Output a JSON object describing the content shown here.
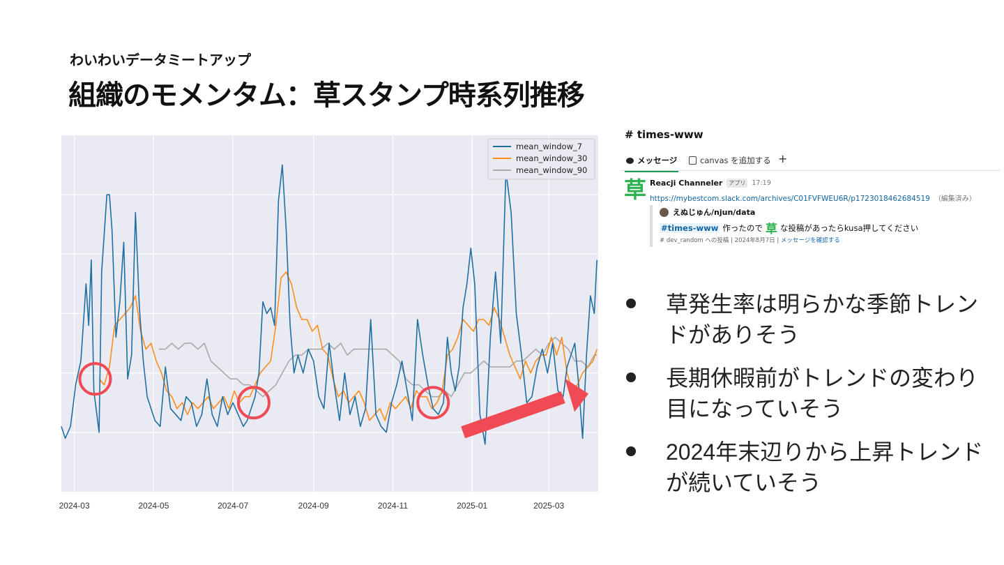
{
  "slide": {
    "subtitle": "わいわいデータミートアップ",
    "title": "組織のモメンタム：草スタンプ時系列推移"
  },
  "slack": {
    "channel": "# times-www",
    "tabs": [
      {
        "label": "メッセージ",
        "icon": "message-bubble-icon"
      },
      {
        "label": "canvas を追加する",
        "icon": "canvas-icon"
      },
      {
        "label": "+",
        "icon": "plus-icon"
      }
    ],
    "message": {
      "app_icon": "草",
      "author": "Reacji Channeler",
      "badge": "アプリ",
      "time": "17:19",
      "link": "https://mybestcom.slack.com/archives/C01FVFWEU6R/p1723018462684519",
      "edited": "（編集済み）",
      "quote": {
        "user": "えぬじゅん/njun/data",
        "mention": "#times-www",
        "text_before": "作ったので",
        "grass": "草",
        "text_after": "な投稿があったらkusa押してください",
        "meta": "# dev_random への投稿 | 2024年8月7日 | ",
        "confirm": "メッセージを確認する"
      }
    }
  },
  "bullets": [
    "草発生率は明らかな季節トレンドがありそう",
    "長期休暇前がトレンドの変わり目になっていそう",
    "2024年末辺りから上昇トレンドが続いていそう"
  ],
  "colors": {
    "series_7": "#1f6fa3",
    "series_30": "#ff8c1a",
    "series_90": "#aaaaaa",
    "plot_bg": "#eaeaf2",
    "highlight": "#f04b55"
  },
  "chart_data": {
    "type": "line",
    "xlabel": "",
    "ylabel": "",
    "x_ticks": [
      "2024-03",
      "2024-05",
      "2024-07",
      "2024-09",
      "2024-11",
      "2025-01",
      "2025-03"
    ],
    "x_range": [
      "2024-02-20",
      "2025-04-08"
    ],
    "y_range": [
      0,
      6
    ],
    "y_tick_labels": "none",
    "legend": "top-right",
    "grid": true,
    "series": [
      {
        "name": "mean_window_7",
        "x": [
          "2024-02-20",
          "2024-02-23",
          "2024-02-27",
          "2024-03-02",
          "2024-03-06",
          "2024-03-10",
          "2024-03-12",
          "2024-03-14",
          "2024-03-16",
          "2024-03-20",
          "2024-03-22",
          "2024-03-26",
          "2024-03-28",
          "2024-03-30",
          "2024-04-02",
          "2024-04-05",
          "2024-04-08",
          "2024-04-11",
          "2024-04-14",
          "2024-04-17",
          "2024-04-20",
          "2024-04-23",
          "2024-04-26",
          "2024-04-29",
          "2024-05-02",
          "2024-05-06",
          "2024-05-10",
          "2024-05-14",
          "2024-05-18",
          "2024-05-22",
          "2024-05-26",
          "2024-05-30",
          "2024-06-03",
          "2024-06-07",
          "2024-06-11",
          "2024-06-15",
          "2024-06-19",
          "2024-06-23",
          "2024-06-27",
          "2024-07-01",
          "2024-07-05",
          "2024-07-09",
          "2024-07-12",
          "2024-07-15",
          "2024-07-18",
          "2024-07-21",
          "2024-07-24",
          "2024-07-27",
          "2024-07-30",
          "2024-08-02",
          "2024-08-05",
          "2024-08-08",
          "2024-08-11",
          "2024-08-14",
          "2024-08-17",
          "2024-08-20",
          "2024-08-24",
          "2024-08-28",
          "2024-09-01",
          "2024-09-05",
          "2024-09-09",
          "2024-09-13",
          "2024-09-17",
          "2024-09-21",
          "2024-09-25",
          "2024-09-29",
          "2024-10-03",
          "2024-10-07",
          "2024-10-11",
          "2024-10-15",
          "2024-10-19",
          "2024-10-23",
          "2024-10-27",
          "2024-10-31",
          "2024-11-04",
          "2024-11-08",
          "2024-11-12",
          "2024-11-16",
          "2024-11-20",
          "2024-11-24",
          "2024-11-28",
          "2024-12-02",
          "2024-12-06",
          "2024-12-10",
          "2024-12-13",
          "2024-12-16",
          "2024-12-19",
          "2024-12-22",
          "2024-12-25",
          "2024-12-28",
          "2024-12-31",
          "2025-01-03",
          "2025-01-07",
          "2025-01-11",
          "2025-01-15",
          "2025-01-19",
          "2025-01-23",
          "2025-01-27",
          "2025-01-31",
          "2025-02-04",
          "2025-02-08",
          "2025-02-12",
          "2025-02-16",
          "2025-02-20",
          "2025-02-24",
          "2025-02-28",
          "2025-03-04",
          "2025-03-08",
          "2025-03-12",
          "2025-03-15",
          "2025-03-18",
          "2025-03-21",
          "2025-03-24",
          "2025-03-27",
          "2025-03-30",
          "2025-04-02",
          "2025-04-05",
          "2025-04-07"
        ],
        "values": [
          1.1,
          0.9,
          1.1,
          1.8,
          2.2,
          3.5,
          2.8,
          3.9,
          1.7,
          1.0,
          3.7,
          5.0,
          5.0,
          4.4,
          2.6,
          3.2,
          4.2,
          1.9,
          2.3,
          4.7,
          3.1,
          2.2,
          1.6,
          1.4,
          1.2,
          1.1,
          2.1,
          1.4,
          1.3,
          1.2,
          1.6,
          1.5,
          1.1,
          1.3,
          1.9,
          1.3,
          1.1,
          1.6,
          1.3,
          1.5,
          1.3,
          1.1,
          1.2,
          1.4,
          1.6,
          2.0,
          3.2,
          3.0,
          3.1,
          2.8,
          4.9,
          5.5,
          4.4,
          2.8,
          2.0,
          2.3,
          2.0,
          2.4,
          2.2,
          1.6,
          1.4,
          2.5,
          1.8,
          1.2,
          2.0,
          1.3,
          1.6,
          1.1,
          1.4,
          2.9,
          1.3,
          1.1,
          1.0,
          1.5,
          1.8,
          2.2,
          1.7,
          1.2,
          2.9,
          2.3,
          1.8,
          1.4,
          1.3,
          1.5,
          2.6,
          2.0,
          1.7,
          2.1,
          3.1,
          3.5,
          4.1,
          3.5,
          1.3,
          0.8,
          2.6,
          3.7,
          2.5,
          5.4,
          4.7,
          3.0,
          2.3,
          1.5,
          1.6,
          2.1,
          2.4,
          2.0,
          2.5,
          1.7,
          1.6,
          2.1,
          2.3,
          2.5,
          1.8,
          0.9,
          2.3,
          3.3,
          3.0,
          3.9
        ]
      },
      {
        "name": "mean_window_30",
        "x": [
          "2024-03-20",
          "2024-03-24",
          "2024-03-28",
          "2024-04-01",
          "2024-04-05",
          "2024-04-09",
          "2024-04-13",
          "2024-04-17",
          "2024-04-21",
          "2024-04-25",
          "2024-04-29",
          "2024-05-03",
          "2024-05-07",
          "2024-05-11",
          "2024-05-15",
          "2024-05-19",
          "2024-05-23",
          "2024-05-27",
          "2024-05-31",
          "2024-06-04",
          "2024-06-08",
          "2024-06-12",
          "2024-06-16",
          "2024-06-20",
          "2024-06-24",
          "2024-06-28",
          "2024-07-02",
          "2024-07-06",
          "2024-07-10",
          "2024-07-14",
          "2024-07-18",
          "2024-07-22",
          "2024-07-26",
          "2024-07-30",
          "2024-08-03",
          "2024-08-07",
          "2024-08-11",
          "2024-08-15",
          "2024-08-19",
          "2024-08-23",
          "2024-08-27",
          "2024-08-31",
          "2024-09-04",
          "2024-09-08",
          "2024-09-12",
          "2024-09-16",
          "2024-09-20",
          "2024-09-24",
          "2024-09-28",
          "2024-10-02",
          "2024-10-06",
          "2024-10-10",
          "2024-10-14",
          "2024-10-18",
          "2024-10-22",
          "2024-10-26",
          "2024-10-30",
          "2024-11-03",
          "2024-11-07",
          "2024-11-11",
          "2024-11-15",
          "2024-11-19",
          "2024-11-23",
          "2024-11-27",
          "2024-12-01",
          "2024-12-05",
          "2024-12-09",
          "2024-12-13",
          "2024-12-17",
          "2024-12-21",
          "2024-12-25",
          "2024-12-29",
          "2025-01-02",
          "2025-01-06",
          "2025-01-10",
          "2025-01-14",
          "2025-01-18",
          "2025-01-22",
          "2025-01-26",
          "2025-01-30",
          "2025-02-03",
          "2025-02-07",
          "2025-02-11",
          "2025-02-15",
          "2025-02-19",
          "2025-02-23",
          "2025-02-27",
          "2025-03-03",
          "2025-03-07",
          "2025-03-11",
          "2025-03-15",
          "2025-03-19",
          "2025-03-23",
          "2025-03-27",
          "2025-03-31",
          "2025-04-04",
          "2025-04-07"
        ],
        "values": [
          1.9,
          1.8,
          2.1,
          2.8,
          2.9,
          3.0,
          3.1,
          3.3,
          2.7,
          2.4,
          2.5,
          2.2,
          2.0,
          1.7,
          1.6,
          1.4,
          1.5,
          1.3,
          1.5,
          1.4,
          1.5,
          1.6,
          1.4,
          1.5,
          1.6,
          1.4,
          1.7,
          1.5,
          1.6,
          1.6,
          1.8,
          2.0,
          2.1,
          2.2,
          2.8,
          3.6,
          3.7,
          3.5,
          3.1,
          2.9,
          2.9,
          2.7,
          2.8,
          2.4,
          2.3,
          1.9,
          1.6,
          1.7,
          1.5,
          1.6,
          1.7,
          1.5,
          1.2,
          1.3,
          1.4,
          1.2,
          1.5,
          1.4,
          1.5,
          1.6,
          1.4,
          1.7,
          1.6,
          1.6,
          1.4,
          1.5,
          1.7,
          2.3,
          2.4,
          2.6,
          2.9,
          2.8,
          2.7,
          2.9,
          2.9,
          2.8,
          3.1,
          2.9,
          2.6,
          2.3,
          2.1,
          1.9,
          2.2,
          2.0,
          2.2,
          2.3,
          2.3,
          2.6,
          2.3,
          2.6,
          2.0,
          1.7,
          1.8,
          2.0,
          2.1,
          2.2,
          2.4
        ]
      },
      {
        "name": "mean_window_90",
        "x": [
          "2024-05-05",
          "2024-05-10",
          "2024-05-15",
          "2024-05-20",
          "2024-05-25",
          "2024-05-30",
          "2024-06-04",
          "2024-06-09",
          "2024-06-14",
          "2024-06-19",
          "2024-06-24",
          "2024-06-29",
          "2024-07-04",
          "2024-07-09",
          "2024-07-14",
          "2024-07-19",
          "2024-07-24",
          "2024-07-29",
          "2024-08-03",
          "2024-08-08",
          "2024-08-13",
          "2024-08-18",
          "2024-08-23",
          "2024-08-28",
          "2024-09-02",
          "2024-09-07",
          "2024-09-12",
          "2024-09-17",
          "2024-09-22",
          "2024-09-27",
          "2024-10-02",
          "2024-10-07",
          "2024-10-12",
          "2024-10-17",
          "2024-10-22",
          "2024-10-27",
          "2024-11-01",
          "2024-11-06",
          "2024-11-11",
          "2024-11-16",
          "2024-11-21",
          "2024-11-26",
          "2024-12-01",
          "2024-12-06",
          "2024-12-11",
          "2024-12-16",
          "2024-12-21",
          "2024-12-26",
          "2024-12-31",
          "2025-01-05",
          "2025-01-10",
          "2025-01-15",
          "2025-01-20",
          "2025-01-25",
          "2025-01-30",
          "2025-02-04",
          "2025-02-09",
          "2025-02-14",
          "2025-02-19",
          "2025-02-24",
          "2025-03-01",
          "2025-03-06",
          "2025-03-11",
          "2025-03-16",
          "2025-03-21",
          "2025-03-26",
          "2025-03-31",
          "2025-04-05",
          "2025-04-07"
        ],
        "values": [
          2.4,
          2.4,
          2.5,
          2.4,
          2.5,
          2.5,
          2.4,
          2.5,
          2.2,
          2.1,
          2.0,
          1.9,
          1.9,
          1.8,
          1.8,
          1.7,
          1.6,
          1.7,
          1.8,
          2.0,
          2.2,
          2.3,
          2.3,
          2.4,
          2.4,
          2.4,
          2.5,
          2.4,
          2.5,
          2.3,
          2.4,
          2.4,
          2.4,
          2.4,
          2.4,
          2.4,
          2.3,
          2.2,
          1.9,
          1.8,
          1.8,
          1.7,
          1.6,
          1.6,
          1.7,
          1.6,
          1.8,
          2.0,
          2.0,
          2.1,
          2.2,
          2.1,
          2.1,
          2.1,
          2.1,
          2.2,
          2.2,
          2.3,
          2.4,
          2.3,
          2.5,
          2.6,
          2.5,
          2.4,
          2.2,
          2.2,
          2.1,
          2.3,
          2.3
        ]
      }
    ]
  }
}
